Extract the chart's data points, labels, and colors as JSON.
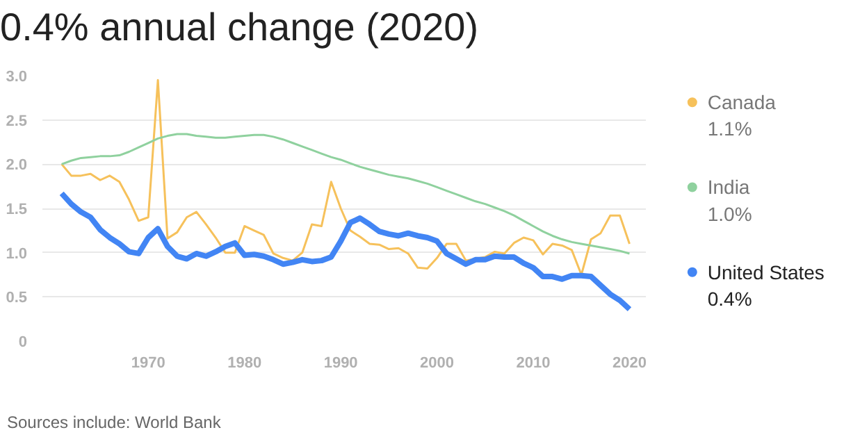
{
  "chart_data": {
    "type": "line",
    "title": "0.4% annual change (2020)",
    "annotations": [
      "Sources include: World Bank",
      "1.1%",
      "1.0%",
      "0.4%"
    ],
    "x": [
      1961,
      1962,
      1963,
      1964,
      1965,
      1966,
      1967,
      1968,
      1969,
      1970,
      1971,
      1972,
      1973,
      1974,
      1975,
      1976,
      1977,
      1978,
      1979,
      1980,
      1981,
      1982,
      1983,
      1984,
      1985,
      1986,
      1987,
      1988,
      1989,
      1990,
      1991,
      1992,
      1993,
      1994,
      1995,
      1996,
      1997,
      1998,
      1999,
      2000,
      2001,
      2002,
      2003,
      2004,
      2005,
      2006,
      2007,
      2008,
      2009,
      2010,
      2011,
      2012,
      2013,
      2014,
      2015,
      2016,
      2017,
      2018,
      2019,
      2020
    ],
    "series": [
      {
        "name": "Canada",
        "color": "#f6c15b",
        "values": [
          2.0,
          1.87,
          1.87,
          1.89,
          1.82,
          1.87,
          1.8,
          1.6,
          1.36,
          1.4,
          2.95,
          1.16,
          1.23,
          1.4,
          1.46,
          1.32,
          1.17,
          1.0,
          1.0,
          1.3,
          1.25,
          1.2,
          0.99,
          0.94,
          0.91,
          1.0,
          1.32,
          1.3,
          1.8,
          1.5,
          1.25,
          1.18,
          1.1,
          1.09,
          1.04,
          1.05,
          0.99,
          0.83,
          0.82,
          0.94,
          1.1,
          1.1,
          0.91,
          0.93,
          0.95,
          1.01,
          0.99,
          1.11,
          1.17,
          1.14,
          0.98,
          1.1,
          1.08,
          1.03,
          0.75,
          1.15,
          1.22,
          1.42,
          1.42,
          1.1
        ]
      },
      {
        "name": "India",
        "color": "#8fd19e",
        "values": [
          2.0,
          2.04,
          2.07,
          2.08,
          2.09,
          2.09,
          2.1,
          2.14,
          2.19,
          2.24,
          2.29,
          2.32,
          2.34,
          2.34,
          2.32,
          2.31,
          2.3,
          2.3,
          2.31,
          2.32,
          2.33,
          2.33,
          2.31,
          2.28,
          2.24,
          2.2,
          2.16,
          2.12,
          2.08,
          2.05,
          2.01,
          1.97,
          1.94,
          1.91,
          1.88,
          1.86,
          1.84,
          1.81,
          1.78,
          1.74,
          1.7,
          1.66,
          1.62,
          1.58,
          1.55,
          1.51,
          1.47,
          1.42,
          1.36,
          1.3,
          1.24,
          1.19,
          1.15,
          1.12,
          1.1,
          1.08,
          1.06,
          1.04,
          1.02,
          0.99
        ]
      },
      {
        "name": "United States",
        "color": "#4285f4",
        "values": [
          1.67,
          1.55,
          1.46,
          1.4,
          1.26,
          1.17,
          1.1,
          1.01,
          0.99,
          1.17,
          1.27,
          1.07,
          0.96,
          0.93,
          0.99,
          0.96,
          1.01,
          1.07,
          1.11,
          0.97,
          0.98,
          0.96,
          0.92,
          0.87,
          0.89,
          0.92,
          0.9,
          0.91,
          0.95,
          1.13,
          1.34,
          1.39,
          1.32,
          1.24,
          1.21,
          1.19,
          1.22,
          1.19,
          1.17,
          1.13,
          0.99,
          0.93,
          0.87,
          0.92,
          0.92,
          0.96,
          0.95,
          0.95,
          0.88,
          0.83,
          0.73,
          0.73,
          0.7,
          0.74,
          0.74,
          0.73,
          0.63,
          0.53,
          0.46,
          0.36
        ]
      }
    ],
    "xlim": [
      1959,
      2021.7
    ],
    "ylim": [
      0,
      3
    ],
    "xticks": [
      1970,
      1980,
      1990,
      2000,
      2010,
      2020
    ],
    "yticks": [
      {
        "value": 0,
        "label": "0"
      },
      {
        "value": 0.5,
        "label": "0.5"
      },
      {
        "value": 1,
        "label": "1.0"
      },
      {
        "value": 1.5,
        "label": "1.5"
      },
      {
        "value": 2,
        "label": "2.0"
      },
      {
        "value": 2.5,
        "label": "2.5"
      },
      {
        "value": 3,
        "label": "3.0"
      }
    ],
    "grid": "y",
    "legend": "right",
    "marker": "none",
    "line_style": "solid"
  }
}
